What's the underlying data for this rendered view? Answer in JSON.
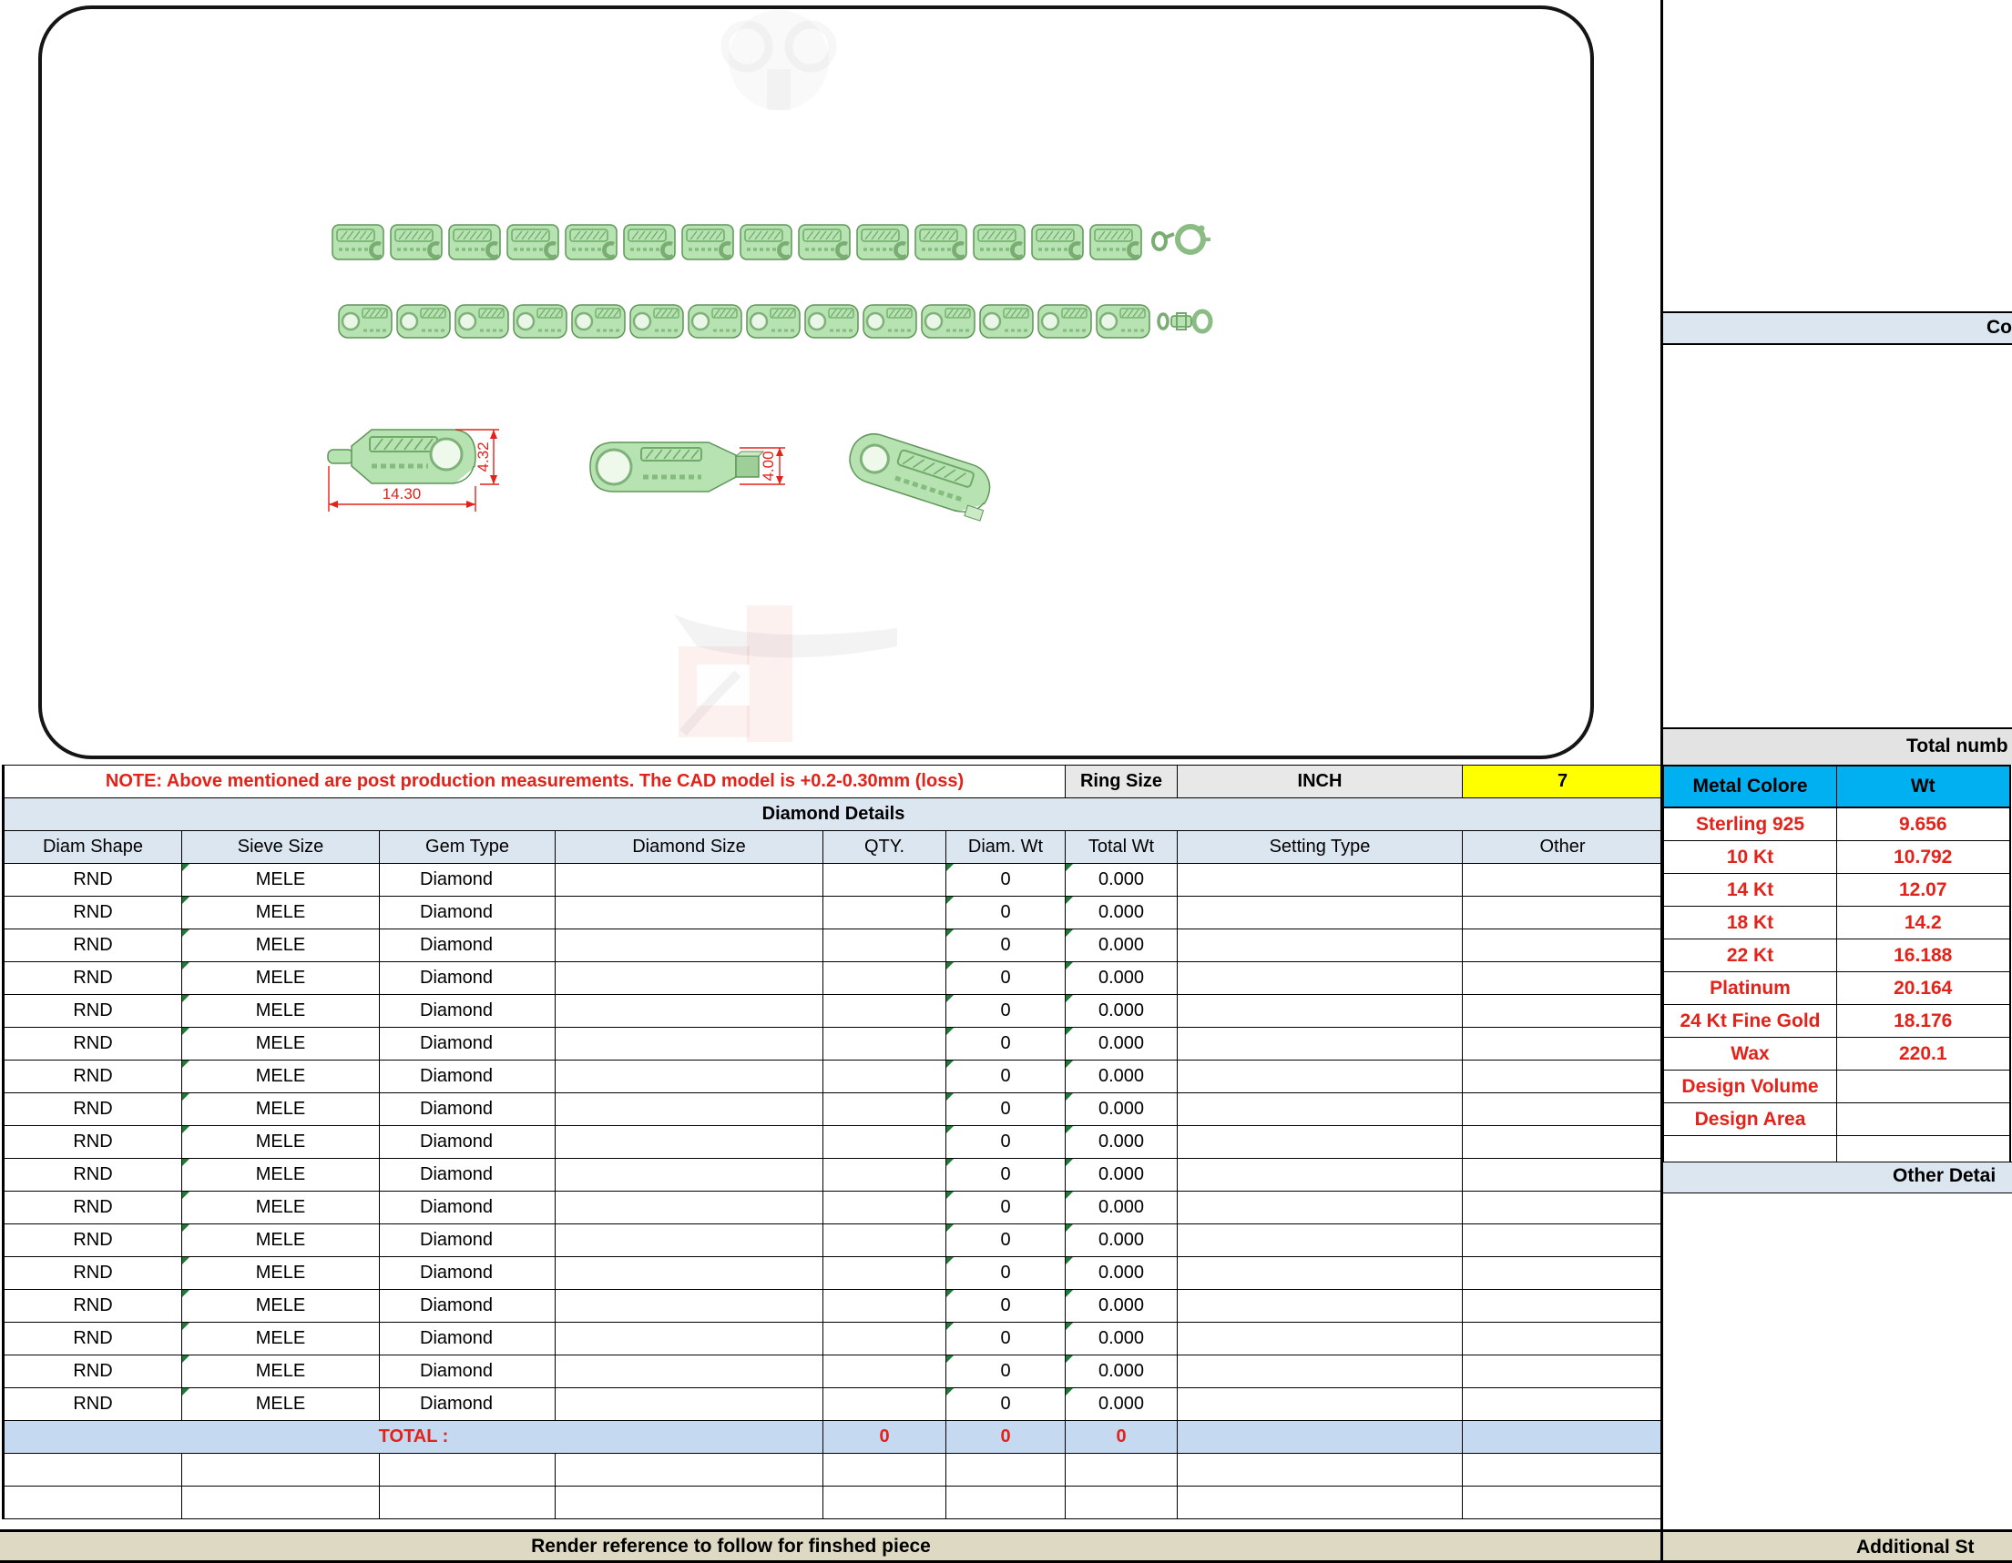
{
  "note_row": {
    "note": "NOTE: Above mentioned are post production measurements. The CAD model is +0.2-0.30mm (loss)",
    "ring_size_label": "Ring Size",
    "unit": "INCH",
    "size_value": "7"
  },
  "diamond_table": {
    "section_title": "Diamond Details",
    "headers": [
      "Diam Shape",
      "Sieve Size",
      "Gem Type",
      "Diamond Size",
      "QTY.",
      "Diam. Wt",
      "Total Wt",
      "Setting Type",
      "Other"
    ],
    "rows": [
      {
        "shape": "RND",
        "sieve": "MELE",
        "gem": "Diamond",
        "size": "",
        "qty": "",
        "diam_wt": "0",
        "total_wt": "0.000",
        "setting": "",
        "other": ""
      },
      {
        "shape": "RND",
        "sieve": "MELE",
        "gem": "Diamond",
        "size": "",
        "qty": "",
        "diam_wt": "0",
        "total_wt": "0.000",
        "setting": "",
        "other": ""
      },
      {
        "shape": "RND",
        "sieve": "MELE",
        "gem": "Diamond",
        "size": "",
        "qty": "",
        "diam_wt": "0",
        "total_wt": "0.000",
        "setting": "",
        "other": ""
      },
      {
        "shape": "RND",
        "sieve": "MELE",
        "gem": "Diamond",
        "size": "",
        "qty": "",
        "diam_wt": "0",
        "total_wt": "0.000",
        "setting": "",
        "other": ""
      },
      {
        "shape": "RND",
        "sieve": "MELE",
        "gem": "Diamond",
        "size": "",
        "qty": "",
        "diam_wt": "0",
        "total_wt": "0.000",
        "setting": "",
        "other": ""
      },
      {
        "shape": "RND",
        "sieve": "MELE",
        "gem": "Diamond",
        "size": "",
        "qty": "",
        "diam_wt": "0",
        "total_wt": "0.000",
        "setting": "",
        "other": ""
      },
      {
        "shape": "RND",
        "sieve": "MELE",
        "gem": "Diamond",
        "size": "",
        "qty": "",
        "diam_wt": "0",
        "total_wt": "0.000",
        "setting": "",
        "other": ""
      },
      {
        "shape": "RND",
        "sieve": "MELE",
        "gem": "Diamond",
        "size": "",
        "qty": "",
        "diam_wt": "0",
        "total_wt": "0.000",
        "setting": "",
        "other": ""
      },
      {
        "shape": "RND",
        "sieve": "MELE",
        "gem": "Diamond",
        "size": "",
        "qty": "",
        "diam_wt": "0",
        "total_wt": "0.000",
        "setting": "",
        "other": ""
      },
      {
        "shape": "RND",
        "sieve": "MELE",
        "gem": "Diamond",
        "size": "",
        "qty": "",
        "diam_wt": "0",
        "total_wt": "0.000",
        "setting": "",
        "other": ""
      },
      {
        "shape": "RND",
        "sieve": "MELE",
        "gem": "Diamond",
        "size": "",
        "qty": "",
        "diam_wt": "0",
        "total_wt": "0.000",
        "setting": "",
        "other": ""
      },
      {
        "shape": "RND",
        "sieve": "MELE",
        "gem": "Diamond",
        "size": "",
        "qty": "",
        "diam_wt": "0",
        "total_wt": "0.000",
        "setting": "",
        "other": ""
      },
      {
        "shape": "RND",
        "sieve": "MELE",
        "gem": "Diamond",
        "size": "",
        "qty": "",
        "diam_wt": "0",
        "total_wt": "0.000",
        "setting": "",
        "other": ""
      },
      {
        "shape": "RND",
        "sieve": "MELE",
        "gem": "Diamond",
        "size": "",
        "qty": "",
        "diam_wt": "0",
        "total_wt": "0.000",
        "setting": "",
        "other": ""
      },
      {
        "shape": "RND",
        "sieve": "MELE",
        "gem": "Diamond",
        "size": "",
        "qty": "",
        "diam_wt": "0",
        "total_wt": "0.000",
        "setting": "",
        "other": ""
      },
      {
        "shape": "RND",
        "sieve": "MELE",
        "gem": "Diamond",
        "size": "",
        "qty": "",
        "diam_wt": "0",
        "total_wt": "0.000",
        "setting": "",
        "other": ""
      },
      {
        "shape": "RND",
        "sieve": "MELE",
        "gem": "Diamond",
        "size": "",
        "qty": "",
        "diam_wt": "0",
        "total_wt": "0.000",
        "setting": "",
        "other": ""
      }
    ],
    "total_row": {
      "label": "TOTAL :",
      "qty": "0",
      "diam_wt": "0",
      "total_wt": "0"
    }
  },
  "metal_table": {
    "headers": {
      "color": "Metal Colore",
      "weight": "Wt"
    },
    "rows": [
      {
        "label": "Sterling 925",
        "wt": "9.656"
      },
      {
        "label": "10 Kt",
        "wt": "10.792"
      },
      {
        "label": "14 Kt",
        "wt": "12.07"
      },
      {
        "label": "18 Kt",
        "wt": "14.2"
      },
      {
        "label": "22 Kt",
        "wt": "16.188"
      },
      {
        "label": "Platinum",
        "wt": "20.164"
      },
      {
        "label": "24 Kt Fine Gold",
        "wt": "18.176"
      },
      {
        "label": "Wax",
        "wt": "220.1"
      },
      {
        "label": "Design Volume",
        "wt": ""
      },
      {
        "label": "Design Area",
        "wt": ""
      },
      {
        "label": "",
        "wt": ""
      }
    ]
  },
  "right_panel": {
    "comments_header": "Co",
    "total_number_header": "Total numb",
    "other_details_header": "Other Detai"
  },
  "footer": {
    "render_note": "Render reference to follow for finshed piece",
    "additional": "Additional St"
  },
  "drawing": {
    "dim_length": "14.30",
    "dim_height": "4.32",
    "dim_width": "4.00"
  },
  "colors": {
    "accent_cyan": "#00b0f0",
    "section_blue": "#dce6f1",
    "total_blue": "#c5d9f1",
    "highlight_yellow": "#ffff00",
    "footer_beige": "#ddd9c3",
    "alert_red": "#e32219",
    "model_green": "#b7e2b2"
  }
}
